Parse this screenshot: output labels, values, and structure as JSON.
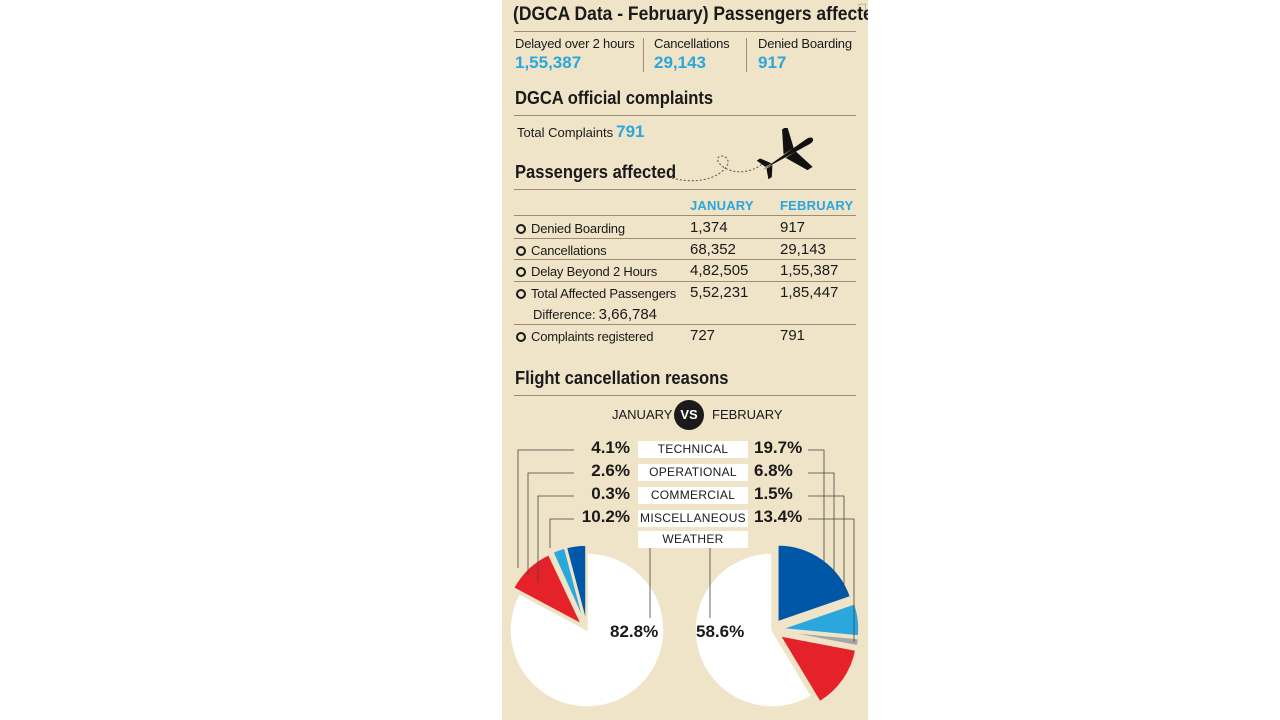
{
  "corner_mark": "□",
  "headline": "(DGCA Data - February) Passengers affected",
  "summary": [
    {
      "label": "Delayed over 2 hours",
      "value": "1,55,387"
    },
    {
      "label": "Cancellations",
      "value": "29,143"
    },
    {
      "label": "Denied Boarding",
      "value": "917"
    }
  ],
  "complaints": {
    "title": "DGCA official complaints",
    "total_label": "Total Complaints",
    "total_value": "791"
  },
  "icons": {
    "plane": "airplane-icon"
  },
  "affected": {
    "title": "Passengers affected",
    "col_january": "JANUARY",
    "col_february": "FEBRUARY",
    "rows": [
      {
        "label": "Denied Boarding",
        "january": "1,374",
        "february": "917"
      },
      {
        "label": "Cancellations",
        "january": "68,352",
        "february": "29,143"
      },
      {
        "label": "Delay Beyond 2 Hours",
        "january": "4,82,505",
        "february": "1,55,387"
      },
      {
        "label": "Total Affected Passengers",
        "january": "5,52,231",
        "february": "1,85,447"
      },
      {
        "label": "Complaints registered",
        "january": "727",
        "february": "791"
      }
    ],
    "difference_label": "Difference:",
    "difference_value": "3,66,784"
  },
  "colors": {
    "panel_bg": "#efe3c8",
    "accent_blue": "#2aa7dc",
    "technical": "#0057a8",
    "operational": "#2aa7dc",
    "commercial": "#a6a6a6",
    "miscellaneous": "#e5222a",
    "weather": "#ffffff"
  },
  "chart_data": {
    "type": "pie",
    "title": "Flight cancellation reasons",
    "compare_left": "JANUARY",
    "compare_badge": "VS",
    "compare_right": "FEBRUARY",
    "categories": [
      "TECHNICAL",
      "OPERATIONAL",
      "COMMERCIAL",
      "MISCELLANEOUS",
      "WEATHER"
    ],
    "series": [
      {
        "name": "JANUARY",
        "values": [
          4.1,
          2.6,
          0.3,
          10.2,
          82.8
        ],
        "labels": [
          "4.1%",
          "2.6%",
          "0.3%",
          "10.2%",
          "82.8%"
        ]
      },
      {
        "name": "FEBRUARY",
        "values": [
          19.7,
          6.8,
          1.5,
          13.4,
          58.6
        ],
        "labels": [
          "19.7%",
          "6.8%",
          "1.5%",
          "13.4%",
          "58.6%"
        ]
      }
    ],
    "legend": "center-labels"
  }
}
